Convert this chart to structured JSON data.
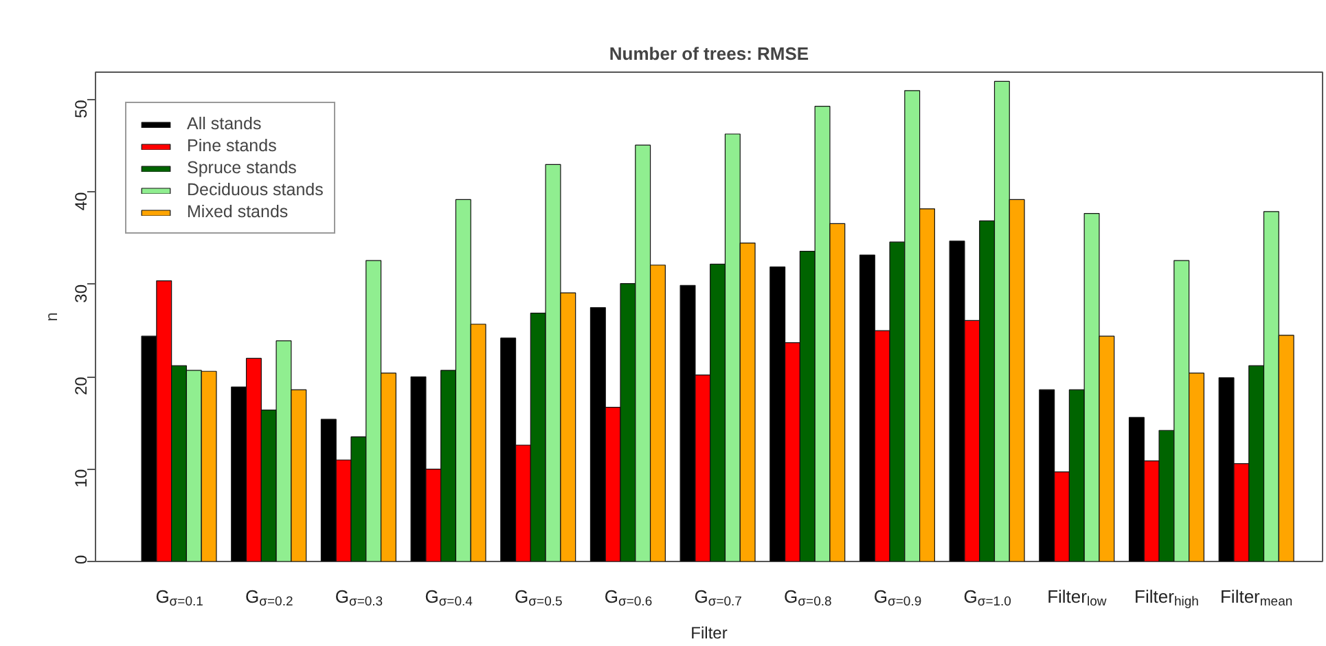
{
  "chart_data": {
    "type": "bar",
    "title": "Number of trees: RMSE",
    "xlabel": "Filter",
    "ylabel": "n",
    "categories": [
      "G$_{σ=0.1}$",
      "G$_{σ=0.2}$",
      "G$_{σ=0.3}$",
      "G$_{σ=0.4}$",
      "G$_{σ=0.5}$",
      "G$_{σ=0.6}$",
      "G$_{σ=0.7}$",
      "G$_{σ=0.8}$",
      "G$_{σ=0.9}$",
      "G$_{σ=1.0}$",
      "Filter$_{low}$",
      "Filter$_{high}$",
      "Filter$_{mean}$"
    ],
    "ylim": [
      0,
      53
    ],
    "yticks": [
      0,
      10,
      20,
      30,
      40,
      50
    ],
    "legend": "top left",
    "series": [
      {
        "name": "All stands",
        "color": "#000000",
        "values": [
          24.4,
          18.9,
          15.4,
          20.0,
          24.2,
          27.5,
          29.9,
          31.9,
          33.2,
          34.7,
          18.6,
          15.6,
          19.9
        ]
      },
      {
        "name": "Pine stands",
        "color": "#ff0000",
        "values": [
          30.4,
          22.0,
          11.0,
          10.0,
          12.6,
          16.7,
          20.2,
          23.7,
          25.0,
          26.1,
          9.7,
          10.9,
          10.6
        ]
      },
      {
        "name": "Spruce stands",
        "color": "#006400",
        "values": [
          21.2,
          16.4,
          13.5,
          20.7,
          26.9,
          30.1,
          32.2,
          33.6,
          34.6,
          36.9,
          18.6,
          14.2,
          21.2
        ]
      },
      {
        "name": "Deciduous stands",
        "color": "#90ee90",
        "values": [
          20.7,
          23.9,
          32.6,
          39.2,
          43.0,
          45.1,
          46.3,
          49.3,
          51.0,
          52.0,
          37.7,
          32.6,
          37.9
        ]
      },
      {
        "name": "Mixed stands",
        "color": "#ffa500",
        "values": [
          20.6,
          18.6,
          20.4,
          25.7,
          29.1,
          32.1,
          34.5,
          36.6,
          38.2,
          39.2,
          24.4,
          20.4,
          24.5
        ]
      }
    ]
  }
}
